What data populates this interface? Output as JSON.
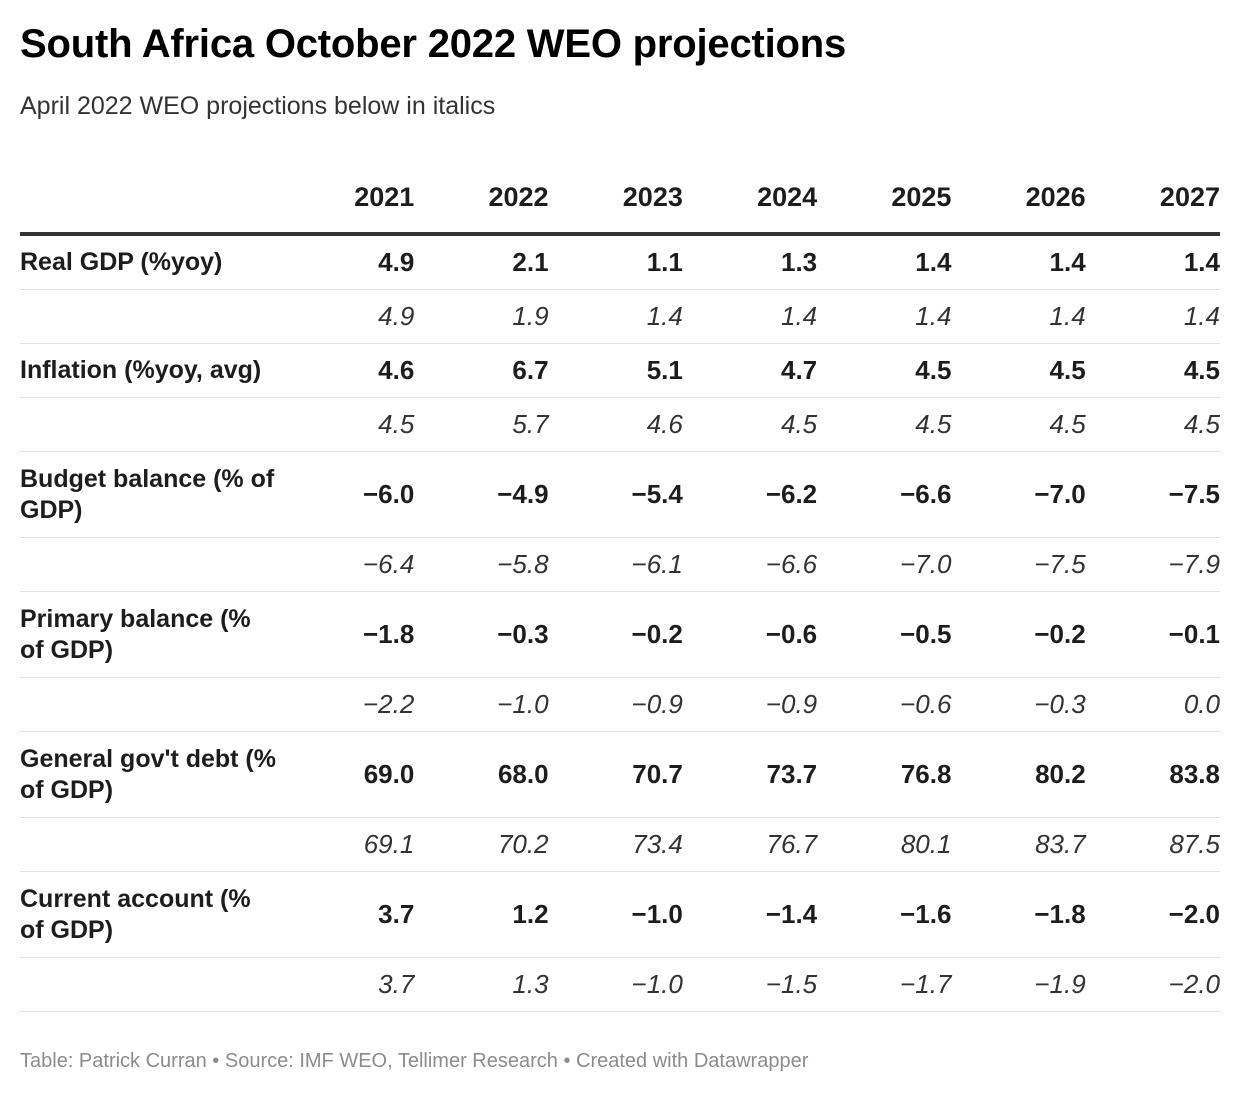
{
  "title": "South Africa October 2022 WEO projections",
  "subtitle": "April 2022 WEO projections below in italics",
  "footer": "Table: Patrick Curran • Source: IMF WEO, Tellimer Research • Created with Datawrapper",
  "chart_data": {
    "type": "table",
    "columns": [
      "",
      "2021",
      "2022",
      "2023",
      "2024",
      "2025",
      "2026",
      "2027"
    ],
    "rows": [
      {
        "label": "Real GDP (%yoy)",
        "october": [
          "4.9",
          "2.1",
          "1.1",
          "1.3",
          "1.4",
          "1.4",
          "1.4"
        ],
        "april": [
          "4.9",
          "1.9",
          "1.4",
          "1.4",
          "1.4",
          "1.4",
          "1.4"
        ]
      },
      {
        "label": "Inflation (%yoy, avg)",
        "october": [
          "4.6",
          "6.7",
          "5.1",
          "4.7",
          "4.5",
          "4.5",
          "4.5"
        ],
        "april": [
          "4.5",
          "5.7",
          "4.6",
          "4.5",
          "4.5",
          "4.5",
          "4.5"
        ]
      },
      {
        "label": "Budget balance (% of GDP)",
        "october": [
          "−6.0",
          "−4.9",
          "−5.4",
          "−6.2",
          "−6.6",
          "−7.0",
          "−7.5"
        ],
        "april": [
          "−6.4",
          "−5.8",
          "−6.1",
          "−6.6",
          "−7.0",
          "−7.5",
          "−7.9"
        ]
      },
      {
        "label": "Primary balance (% of GDP)",
        "october": [
          "−1.8",
          "−0.3",
          "−0.2",
          "−0.6",
          "−0.5",
          "−0.2",
          "−0.1"
        ],
        "april": [
          "−2.2",
          "−1.0",
          "−0.9",
          "−0.9",
          "−0.6",
          "−0.3",
          "0.0"
        ]
      },
      {
        "label": "General gov't debt (% of GDP)",
        "october": [
          "69.0",
          "68.0",
          "70.7",
          "73.7",
          "76.8",
          "80.2",
          "83.8"
        ],
        "april": [
          "69.1",
          "70.2",
          "73.4",
          "76.7",
          "80.1",
          "83.7",
          "87.5"
        ]
      },
      {
        "label": "Current account (% of GDP)",
        "october": [
          "3.7",
          "1.2",
          "−1.0",
          "−1.4",
          "−1.6",
          "−1.8",
          "−2.0"
        ],
        "april": [
          "3.7",
          "1.3",
          "−1.0",
          "−1.5",
          "−1.7",
          "−1.9",
          "−2.0"
        ]
      }
    ]
  }
}
